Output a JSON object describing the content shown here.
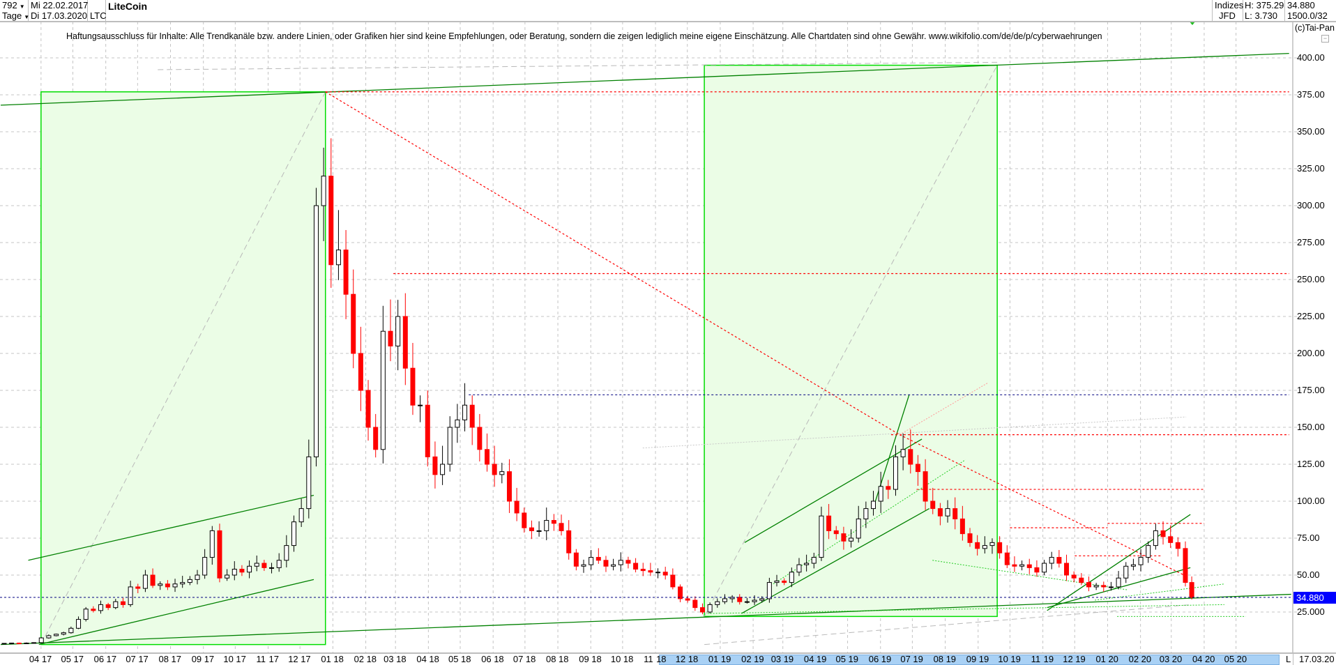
{
  "header": {
    "bars_count": "792",
    "period": "Tage",
    "start_date": "Mi 22.02.2017",
    "end_date": "Di 17.03.2020",
    "symbol": "LTC",
    "title": "LiteCoin",
    "market": "Indizes",
    "source": "JFD",
    "high": "H: 375.29",
    "low": "L: 3.730",
    "last": "34.880",
    "scale": "1500.0/32"
  },
  "disclaimer": "Haftungsausschluss für Inhalte: Alle Trendkanäle bzw. andere Linien, oder Grafiken hier sind keine Empfehlungen, oder Beratung, sondern die zeigen lediglich meine eigene Einschätzung. Alle Chartdaten sind ohne Gewähr.  www.wikifolio.com/de/de/p/cyberwaehrungen",
  "copyright": "(c)Tai-Pan",
  "x_axis_end": {
    "marker": "L",
    "date": "17.03.20"
  },
  "chart_data": {
    "type": "candlestick",
    "title": "LiteCoin",
    "x_range": [
      "2017-02-22",
      "2020-06-22"
    ],
    "ylim": [
      0,
      420
    ],
    "grid": true,
    "colors": {
      "up": "#000000",
      "down": "#ff0000",
      "box_fill": "#ebfde6",
      "box_border": "#00dd00",
      "trend": "#008000",
      "level": "#ff0000",
      "current": "#0000ff"
    },
    "current_price": 34.88,
    "y_ticks": [
      {
        "value": 400,
        "label": "400.00"
      },
      {
        "value": 375,
        "label": "375.00"
      },
      {
        "value": 350,
        "label": "350.00"
      },
      {
        "value": 325,
        "label": "325.00"
      },
      {
        "value": 300,
        "label": "300.00"
      },
      {
        "value": 275,
        "label": "275.00"
      },
      {
        "value": 250,
        "label": "250.00"
      },
      {
        "value": 225,
        "label": "225.00"
      },
      {
        "value": 200,
        "label": "200.00"
      },
      {
        "value": 175,
        "label": "175.00"
      },
      {
        "value": 150,
        "label": "150.00"
      },
      {
        "value": 125,
        "label": "125.00"
      },
      {
        "value": 100,
        "label": "100.00"
      },
      {
        "value": 75,
        "label": "75.00"
      },
      {
        "value": 50,
        "label": "50.00"
      },
      {
        "value": 25,
        "label": "25.000"
      }
    ],
    "x_ticks": [
      {
        "date": "2017-04-01",
        "m": "04",
        "y": "17"
      },
      {
        "date": "2017-05-01",
        "m": "05",
        "y": "17"
      },
      {
        "date": "2017-06-01",
        "m": "06",
        "y": "17"
      },
      {
        "date": "2017-07-01",
        "m": "07",
        "y": "17"
      },
      {
        "date": "2017-08-01",
        "m": "08",
        "y": "17"
      },
      {
        "date": "2017-09-01",
        "m": "09",
        "y": "17"
      },
      {
        "date": "2017-10-01",
        "m": "10",
        "y": "17"
      },
      {
        "date": "2017-11-01",
        "m": "11",
        "y": "17"
      },
      {
        "date": "2017-12-01",
        "m": "12",
        "y": "17"
      },
      {
        "date": "2018-01-01",
        "m": "01",
        "y": "18"
      },
      {
        "date": "2018-02-01",
        "m": "02",
        "y": "18"
      },
      {
        "date": "2018-03-01",
        "m": "03",
        "y": "18"
      },
      {
        "date": "2018-04-01",
        "m": "04",
        "y": "18"
      },
      {
        "date": "2018-05-01",
        "m": "05",
        "y": "18"
      },
      {
        "date": "2018-06-01",
        "m": "06",
        "y": "18"
      },
      {
        "date": "2018-07-01",
        "m": "07",
        "y": "18"
      },
      {
        "date": "2018-08-01",
        "m": "08",
        "y": "18"
      },
      {
        "date": "2018-09-01",
        "m": "09",
        "y": "18"
      },
      {
        "date": "2018-10-01",
        "m": "10",
        "y": "18"
      },
      {
        "date": "2018-11-01",
        "m": "11",
        "y": "18"
      },
      {
        "date": "2018-12-01",
        "m": "12",
        "y": "18"
      },
      {
        "date": "2019-01-01",
        "m": "01",
        "y": "19"
      },
      {
        "date": "2019-02-01",
        "m": "02",
        "y": "19"
      },
      {
        "date": "2019-03-01",
        "m": "03",
        "y": "19"
      },
      {
        "date": "2019-04-01",
        "m": "04",
        "y": "19"
      },
      {
        "date": "2019-05-01",
        "m": "05",
        "y": "19"
      },
      {
        "date": "2019-06-01",
        "m": "06",
        "y": "19"
      },
      {
        "date": "2019-07-01",
        "m": "07",
        "y": "19"
      },
      {
        "date": "2019-08-01",
        "m": "08",
        "y": "19"
      },
      {
        "date": "2019-09-01",
        "m": "09",
        "y": "19"
      },
      {
        "date": "2019-10-01",
        "m": "10",
        "y": "19"
      },
      {
        "date": "2019-11-01",
        "m": "11",
        "y": "19"
      },
      {
        "date": "2019-12-01",
        "m": "12",
        "y": "19"
      },
      {
        "date": "2020-01-01",
        "m": "01",
        "y": "20"
      },
      {
        "date": "2020-02-01",
        "m": "02",
        "y": "20"
      },
      {
        "date": "2020-03-01",
        "m": "03",
        "y": "20"
      },
      {
        "date": "2020-04-01",
        "m": "04",
        "y": "20"
      },
      {
        "date": "2020-05-01",
        "m": "05",
        "y": "20"
      }
    ],
    "closes": [
      [
        "2017-02-22",
        3.8
      ],
      [
        "2017-03-01",
        4.0
      ],
      [
        "2017-03-08",
        3.9
      ],
      [
        "2017-03-15",
        4.0
      ],
      [
        "2017-03-22",
        4.3
      ],
      [
        "2017-03-29",
        7.5
      ],
      [
        "2017-04-05",
        9
      ],
      [
        "2017-04-12",
        10
      ],
      [
        "2017-04-19",
        11
      ],
      [
        "2017-04-26",
        14
      ],
      [
        "2017-05-03",
        20
      ],
      [
        "2017-05-10",
        27
      ],
      [
        "2017-05-17",
        26
      ],
      [
        "2017-05-24",
        30
      ],
      [
        "2017-05-31",
        28
      ],
      [
        "2017-06-07",
        32
      ],
      [
        "2017-06-14",
        30
      ],
      [
        "2017-06-21",
        42
      ],
      [
        "2017-06-28",
        41
      ],
      [
        "2017-07-05",
        50
      ],
      [
        "2017-07-12",
        43
      ],
      [
        "2017-07-19",
        44
      ],
      [
        "2017-07-26",
        42
      ],
      [
        "2017-08-02",
        44
      ],
      [
        "2017-08-09",
        45
      ],
      [
        "2017-08-16",
        47
      ],
      [
        "2017-08-23",
        50
      ],
      [
        "2017-08-30",
        62
      ],
      [
        "2017-09-06",
        80
      ],
      [
        "2017-09-13",
        48
      ],
      [
        "2017-09-20",
        50
      ],
      [
        "2017-09-27",
        54
      ],
      [
        "2017-10-04",
        52
      ],
      [
        "2017-10-11",
        56
      ],
      [
        "2017-10-18",
        58
      ],
      [
        "2017-10-25",
        55
      ],
      [
        "2017-11-01",
        55
      ],
      [
        "2017-11-08",
        60
      ],
      [
        "2017-11-15",
        70
      ],
      [
        "2017-11-22",
        86
      ],
      [
        "2017-11-29",
        95
      ],
      [
        "2017-12-06",
        130
      ],
      [
        "2017-12-13",
        300
      ],
      [
        "2017-12-20",
        320
      ],
      [
        "2017-12-27",
        260
      ],
      [
        "2018-01-03",
        270
      ],
      [
        "2018-01-10",
        240
      ],
      [
        "2018-01-17",
        200
      ],
      [
        "2018-01-24",
        175
      ],
      [
        "2018-01-31",
        150
      ],
      [
        "2018-02-07",
        135
      ],
      [
        "2018-02-14",
        215
      ],
      [
        "2018-02-21",
        205
      ],
      [
        "2018-02-28",
        225
      ],
      [
        "2018-03-07",
        190
      ],
      [
        "2018-03-14",
        165
      ],
      [
        "2018-03-21",
        165
      ],
      [
        "2018-03-28",
        130
      ],
      [
        "2018-04-04",
        118
      ],
      [
        "2018-04-11",
        125
      ],
      [
        "2018-04-18",
        150
      ],
      [
        "2018-04-25",
        155
      ],
      [
        "2018-05-02",
        165
      ],
      [
        "2018-05-09",
        150
      ],
      [
        "2018-05-16",
        135
      ],
      [
        "2018-05-23",
        125
      ],
      [
        "2018-05-30",
        118
      ],
      [
        "2018-06-06",
        120
      ],
      [
        "2018-06-13",
        100
      ],
      [
        "2018-06-20",
        92
      ],
      [
        "2018-06-27",
        82
      ],
      [
        "2018-07-04",
        80
      ],
      [
        "2018-07-11",
        80
      ],
      [
        "2018-07-18",
        87
      ],
      [
        "2018-07-25",
        85
      ],
      [
        "2018-08-01",
        80
      ],
      [
        "2018-08-08",
        65
      ],
      [
        "2018-08-15",
        56
      ],
      [
        "2018-08-22",
        57
      ],
      [
        "2018-08-29",
        62
      ],
      [
        "2018-09-05",
        60
      ],
      [
        "2018-09-12",
        56
      ],
      [
        "2018-09-19",
        57
      ],
      [
        "2018-09-26",
        60
      ],
      [
        "2018-10-03",
        58
      ],
      [
        "2018-10-10",
        54
      ],
      [
        "2018-10-17",
        53
      ],
      [
        "2018-10-24",
        52
      ],
      [
        "2018-10-31",
        52
      ],
      [
        "2018-11-07",
        50
      ],
      [
        "2018-11-14",
        42
      ],
      [
        "2018-11-21",
        34
      ],
      [
        "2018-11-28",
        33
      ],
      [
        "2018-12-05",
        28
      ],
      [
        "2018-12-12",
        25
      ],
      [
        "2018-12-19",
        30
      ],
      [
        "2018-12-26",
        32
      ],
      [
        "2019-01-02",
        34
      ],
      [
        "2019-01-09",
        35
      ],
      [
        "2019-01-16",
        32
      ],
      [
        "2019-01-23",
        32
      ],
      [
        "2019-01-30",
        33
      ],
      [
        "2019-02-06",
        34
      ],
      [
        "2019-02-13",
        45
      ],
      [
        "2019-02-20",
        46
      ],
      [
        "2019-02-27",
        45
      ],
      [
        "2019-03-06",
        52
      ],
      [
        "2019-03-13",
        57
      ],
      [
        "2019-03-20",
        58
      ],
      [
        "2019-03-27",
        62
      ],
      [
        "2019-04-03",
        90
      ],
      [
        "2019-04-10",
        80
      ],
      [
        "2019-04-17",
        78
      ],
      [
        "2019-04-24",
        73
      ],
      [
        "2019-05-01",
        75
      ],
      [
        "2019-05-08",
        88
      ],
      [
        "2019-05-15",
        95
      ],
      [
        "2019-05-22",
        100
      ],
      [
        "2019-05-29",
        110
      ],
      [
        "2019-06-05",
        108
      ],
      [
        "2019-06-12",
        130
      ],
      [
        "2019-06-19",
        135
      ],
      [
        "2019-06-26",
        125
      ],
      [
        "2019-07-03",
        120
      ],
      [
        "2019-07-10",
        100
      ],
      [
        "2019-07-17",
        95
      ],
      [
        "2019-07-24",
        90
      ],
      [
        "2019-07-31",
        95
      ],
      [
        "2019-08-07",
        88
      ],
      [
        "2019-08-14",
        78
      ],
      [
        "2019-08-21",
        72
      ],
      [
        "2019-08-28",
        68
      ],
      [
        "2019-09-04",
        70
      ],
      [
        "2019-09-11",
        72
      ],
      [
        "2019-09-18",
        65
      ],
      [
        "2019-09-25",
        57
      ],
      [
        "2019-10-02",
        56
      ],
      [
        "2019-10-09",
        57
      ],
      [
        "2019-10-16",
        55
      ],
      [
        "2019-10-23",
        52
      ],
      [
        "2019-10-30",
        58
      ],
      [
        "2019-11-06",
        62
      ],
      [
        "2019-11-13",
        58
      ],
      [
        "2019-11-20",
        50
      ],
      [
        "2019-11-27",
        48
      ],
      [
        "2019-12-04",
        45
      ],
      [
        "2019-12-11",
        42
      ],
      [
        "2019-12-18",
        43
      ],
      [
        "2019-12-25",
        42
      ],
      [
        "2020-01-01",
        42
      ],
      [
        "2020-01-08",
        48
      ],
      [
        "2020-01-15",
        56
      ],
      [
        "2020-01-22",
        57
      ],
      [
        "2020-01-29",
        62
      ],
      [
        "2020-02-05",
        70
      ],
      [
        "2020-02-12",
        80
      ],
      [
        "2020-02-19",
        76
      ],
      [
        "2020-02-26",
        72
      ],
      [
        "2020-03-04",
        68
      ],
      [
        "2020-03-11",
        45
      ],
      [
        "2020-03-17",
        34.88
      ]
    ],
    "annotations": [
      {
        "kind": "box",
        "from": [
          "2017-04-01",
          377
        ],
        "to": [
          "2017-12-25",
          3
        ]
      },
      {
        "kind": "box",
        "from": [
          "2018-12-17",
          395
        ],
        "to": [
          "2019-09-19",
          22
        ]
      },
      {
        "kind": "line",
        "style": "dash-gray",
        "from": [
          "2017-04-01",
          3
        ],
        "to": [
          "2017-12-25",
          377
        ]
      },
      {
        "kind": "line",
        "style": "dash-gray",
        "from": [
          "2018-12-17",
          22
        ],
        "to": [
          "2019-09-19",
          395
        ]
      },
      {
        "kind": "line",
        "style": "dash-gray",
        "from": [
          "2017-07-20",
          392
        ],
        "to": [
          "2019-09-19",
          397
        ]
      },
      {
        "kind": "line",
        "style": "dash-gray",
        "from": [
          "2018-12-17",
          3
        ],
        "to": [
          "2020-03-20",
          30
        ]
      },
      {
        "kind": "line",
        "style": "dot-gray",
        "from": [
          "2018-10-20",
          136
        ],
        "to": [
          "2020-03-15",
          157
        ]
      },
      {
        "kind": "line",
        "style": "solid-green",
        "from": [
          "2017-02-22",
          368
        ],
        "to": [
          "2020-06-20",
          403
        ]
      },
      {
        "kind": "line",
        "style": "solid-green",
        "from": [
          "2017-02-22",
          3
        ],
        "to": [
          "2020-06-22",
          37
        ]
      },
      {
        "kind": "line",
        "style": "solid-green",
        "from": [
          "2017-03-30",
          3
        ],
        "to": [
          "2017-12-14",
          47
        ]
      },
      {
        "kind": "line",
        "style": "solid-green",
        "from": [
          "2017-03-20",
          60
        ],
        "to": [
          "2017-12-14",
          104
        ]
      },
      {
        "kind": "line",
        "style": "solid-green",
        "from": [
          "2019-01-24",
          72
        ],
        "to": [
          "2019-07-10",
          142
        ]
      },
      {
        "kind": "line",
        "style": "solid-green",
        "from": [
          "2019-01-21",
          24
        ],
        "to": [
          "2019-07-17",
          95
        ]
      },
      {
        "kind": "line",
        "style": "solid-green",
        "from": [
          "2019-05-25",
          95
        ],
        "to": [
          "2019-06-28",
          172
        ]
      },
      {
        "kind": "line",
        "style": "solid-green",
        "from": [
          "2019-11-05",
          26
        ],
        "to": [
          "2020-03-19",
          91
        ]
      },
      {
        "kind": "line",
        "style": "solid-green",
        "from": [
          "2019-11-05",
          28
        ],
        "to": [
          "2020-03-19",
          55
        ]
      },
      {
        "kind": "line",
        "style": "dot-green",
        "from": [
          "2019-02-20",
          44
        ],
        "to": [
          "2019-08-20",
          128
        ]
      },
      {
        "kind": "line",
        "style": "dot-green",
        "from": [
          "2019-07-20",
          60
        ],
        "to": [
          "2020-01-20",
          40
        ]
      },
      {
        "kind": "line",
        "style": "dot-green",
        "from": [
          "2018-12-20",
          24
        ],
        "to": [
          "2020-04-20",
          30
        ]
      },
      {
        "kind": "line",
        "style": "dot-green",
        "from": [
          "2019-12-20",
          33
        ],
        "to": [
          "2020-04-20",
          44
        ]
      },
      {
        "kind": "line",
        "style": "dot-green",
        "from": [
          "2020-01-10",
          22
        ],
        "to": [
          "2020-05-10",
          22
        ]
      },
      {
        "kind": "line",
        "style": "dash-red",
        "from": [
          "2017-12-25",
          377
        ],
        "to": [
          "2020-06-20",
          377
        ]
      },
      {
        "kind": "line",
        "style": "dash-red",
        "from": [
          "2018-02-27",
          254
        ],
        "to": [
          "2020-06-20",
          254
        ]
      },
      {
        "kind": "line",
        "style": "dash-red",
        "from": [
          "2019-06-11",
          145
        ],
        "to": [
          "2020-06-20",
          145
        ]
      },
      {
        "kind": "line",
        "style": "dash-red",
        "from": [
          "2019-07-05",
          108
        ],
        "to": [
          "2020-04-02",
          108
        ]
      },
      {
        "kind": "line",
        "style": "dash-red",
        "from": [
          "2020-01-01",
          85
        ],
        "to": [
          "2020-04-01",
          85
        ]
      },
      {
        "kind": "line",
        "style": "dash-red",
        "from": [
          "2019-10-01",
          82
        ],
        "to": [
          "2020-01-01",
          82
        ]
      },
      {
        "kind": "line",
        "style": "dash-red",
        "from": [
          "2019-12-01",
          63
        ],
        "to": [
          "2020-02-20",
          63
        ]
      },
      {
        "kind": "line",
        "style": "dash-red",
        "from": [
          "2017-12-25",
          377
        ],
        "to": [
          "2019-06-19",
          145
        ]
      },
      {
        "kind": "line",
        "style": "dash-red",
        "from": [
          "2019-06-19",
          145
        ],
        "to": [
          "2020-03-13",
          50
        ]
      },
      {
        "kind": "line",
        "style": "dot-red",
        "from": [
          "2019-06-19",
          145
        ],
        "to": [
          "2019-09-10",
          180
        ]
      },
      {
        "kind": "line",
        "style": "dash-navy",
        "from": [
          "2018-05-09",
          172
        ],
        "to": [
          "2020-06-20",
          172
        ]
      }
    ]
  }
}
